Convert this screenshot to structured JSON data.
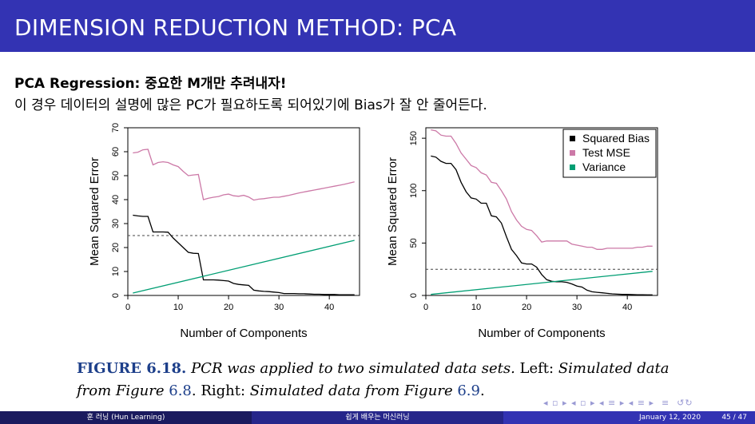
{
  "slide": {
    "title": "DIMENSION REDUCTION METHOD: PCA",
    "heading": "PCA Regression: 중요한 M개만 추려내자!",
    "body": "이 경우 데이터의 설명에 많은 PC가 필요하도록 되어있기에 Bias가 잘 안 줄어든다."
  },
  "caption": {
    "label": "FIGURE 6.18.",
    "part1": "PCR was applied to two simulated data sets.",
    "part2": "Left:",
    "part3": "Simulated data from Figure",
    "ref1": "6.8",
    "part4": ". Right:",
    "part5": "Simulated data from Figure",
    "ref2": "6.9",
    "part6": "."
  },
  "footer": {
    "author": "훈 러닝 (Hun Learning)",
    "course": "쉽게 배우는 머신러닝",
    "date": "January 12, 2020",
    "page": "45 / 47"
  },
  "chart_data": [
    {
      "type": "line",
      "xlabel": "Number of Components",
      "ylabel": "Mean Squared Error",
      "xlim": [
        0,
        46
      ],
      "ylim": [
        0,
        70
      ],
      "xticks": [
        0,
        10,
        20,
        30,
        40
      ],
      "yticks": [
        0,
        10,
        20,
        30,
        40,
        50,
        60,
        70
      ],
      "reference_line": 25,
      "colors": {
        "bias": "#000000",
        "test": "#cc79a7",
        "variance": "#009e73",
        "ref": "#444444"
      },
      "series": [
        {
          "key": "bias",
          "x": [
            1,
            2,
            3,
            4,
            5,
            6,
            7,
            8,
            9,
            10,
            11,
            12,
            13,
            14,
            15,
            16,
            17,
            18,
            19,
            20,
            21,
            22,
            23,
            24,
            25,
            26,
            27,
            28,
            29,
            30,
            31,
            32,
            33,
            34,
            35,
            36,
            37,
            38,
            39,
            40,
            41,
            42,
            43,
            44,
            45
          ],
          "y": [
            33.5,
            33.2,
            33,
            33,
            26.5,
            26.5,
            26.5,
            26.4,
            24,
            22,
            20,
            18,
            17.6,
            17.5,
            6.5,
            6.5,
            6.5,
            6.4,
            6.2,
            6,
            5,
            4.6,
            4.4,
            4.2,
            2.2,
            1.9,
            1.7,
            1.6,
            1.4,
            1.2,
            0.8,
            0.8,
            0.8,
            0.7,
            0.7,
            0.6,
            0.5,
            0.5,
            0.4,
            0.4,
            0.4,
            0.3,
            0.3,
            0.3,
            0.3
          ]
        },
        {
          "key": "test",
          "x": [
            1,
            2,
            3,
            4,
            5,
            6,
            7,
            8,
            9,
            10,
            11,
            12,
            13,
            14,
            15,
            16,
            17,
            18,
            19,
            20,
            21,
            22,
            23,
            24,
            25,
            26,
            27,
            28,
            29,
            30,
            31,
            32,
            33,
            34,
            35,
            36,
            37,
            38,
            39,
            40,
            41,
            42,
            43,
            44,
            45
          ],
          "y": [
            59.5,
            59.8,
            60.8,
            61,
            54.5,
            55.5,
            55.8,
            55.5,
            54.5,
            53.8,
            51.8,
            50,
            50.3,
            50.5,
            40,
            40.6,
            41,
            41.3,
            42,
            42.3,
            41.6,
            41.4,
            41.8,
            41.1,
            39.8,
            40.2,
            40.4,
            40.7,
            41,
            41,
            41.4,
            41.8,
            42.3,
            42.8,
            43.2,
            43.6,
            44,
            44.4,
            44.8,
            45.2,
            45.6,
            46,
            46.4,
            46.9,
            47.4
          ]
        },
        {
          "key": "variance",
          "x": [
            1,
            45
          ],
          "y": [
            1,
            23
          ]
        }
      ]
    },
    {
      "type": "line",
      "xlabel": "Number of Components",
      "ylabel": "Mean Squared Error",
      "xlim": [
        0,
        46
      ],
      "ylim": [
        0,
        160
      ],
      "xticks": [
        0,
        10,
        20,
        30,
        40
      ],
      "yticks": [
        0,
        50,
        100,
        150
      ],
      "reference_line": 25,
      "legend": {
        "position": "top-right",
        "entries": [
          {
            "label": "Squared Bias",
            "color": "#000000"
          },
          {
            "label": "Test MSE",
            "color": "#cc79a7"
          },
          {
            "label": "Variance",
            "color": "#009e73"
          }
        ]
      },
      "colors": {
        "bias": "#000000",
        "test": "#cc79a7",
        "variance": "#009e73",
        "ref": "#444444"
      },
      "series": [
        {
          "key": "bias",
          "x": [
            1,
            2,
            3,
            4,
            5,
            6,
            7,
            8,
            9,
            10,
            11,
            12,
            13,
            14,
            15,
            16,
            17,
            18,
            19,
            20,
            21,
            22,
            23,
            24,
            25,
            26,
            27,
            28,
            29,
            30,
            31,
            32,
            33,
            34,
            35,
            36,
            37,
            38,
            39,
            40,
            41,
            42,
            43,
            44,
            45
          ],
          "y": [
            133,
            132,
            128,
            126,
            126,
            120,
            108,
            99,
            93,
            92,
            88,
            88,
            76,
            75,
            69,
            56,
            44,
            38,
            31,
            30,
            30,
            27,
            20,
            15,
            13.5,
            13,
            13,
            12.5,
            11,
            9,
            8,
            5,
            3.5,
            3,
            2.5,
            2,
            1.5,
            1.2,
            1,
            1,
            0.8,
            0.7,
            0.6,
            0.5,
            0.5
          ]
        },
        {
          "key": "test",
          "x": [
            1,
            2,
            3,
            4,
            5,
            6,
            7,
            8,
            9,
            10,
            11,
            12,
            13,
            14,
            15,
            16,
            17,
            18,
            19,
            20,
            21,
            22,
            23,
            24,
            25,
            26,
            27,
            28,
            29,
            30,
            31,
            32,
            33,
            34,
            35,
            36,
            37,
            38,
            39,
            40,
            41,
            42,
            43,
            44,
            45
          ],
          "y": [
            158,
            157,
            153,
            152,
            152,
            145,
            136,
            130,
            124,
            122,
            117,
            115,
            108,
            107,
            100,
            92,
            80,
            72,
            66,
            63,
            62,
            57,
            51,
            52,
            52,
            52,
            52,
            52,
            49,
            48,
            47,
            46,
            46,
            44,
            44,
            45,
            45,
            45,
            45,
            45,
            45,
            46,
            46,
            47,
            47
          ]
        },
        {
          "key": "variance",
          "x": [
            1,
            45
          ],
          "y": [
            1,
            23
          ]
        }
      ]
    }
  ]
}
